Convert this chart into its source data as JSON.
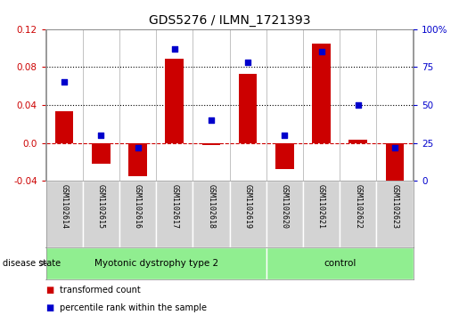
{
  "title": "GDS5276 / ILMN_1721393",
  "samples": [
    "GSM1102614",
    "GSM1102615",
    "GSM1102616",
    "GSM1102617",
    "GSM1102618",
    "GSM1102619",
    "GSM1102620",
    "GSM1102621",
    "GSM1102622",
    "GSM1102623"
  ],
  "transformed_count": [
    0.033,
    -0.022,
    -0.035,
    0.089,
    -0.002,
    0.073,
    -0.028,
    0.105,
    0.003,
    -0.048
  ],
  "percentile_rank": [
    65,
    30,
    22,
    87,
    40,
    78,
    30,
    85,
    50,
    22
  ],
  "disease_groups": [
    {
      "label": "Myotonic dystrophy type 2",
      "start": 0,
      "end": 6,
      "color": "#90ee90"
    },
    {
      "label": "control",
      "start": 6,
      "end": 10,
      "color": "#90ee90"
    }
  ],
  "bar_color": "#cc0000",
  "dot_color": "#0000cc",
  "ylim_left": [
    -0.04,
    0.12
  ],
  "yticks_left": [
    -0.04,
    0.0,
    0.04,
    0.08,
    0.12
  ],
  "ylim_right": [
    0,
    100
  ],
  "yticks_right": [
    0,
    25,
    50,
    75,
    100
  ],
  "dotted_lines": [
    0.04,
    0.08
  ],
  "background_color": "#ffffff",
  "legend_items": [
    {
      "label": "transformed count",
      "color": "#cc0000"
    },
    {
      "label": "percentile rank within the sample",
      "color": "#0000cc"
    }
  ],
  "n_disease": 6,
  "n_control": 4
}
